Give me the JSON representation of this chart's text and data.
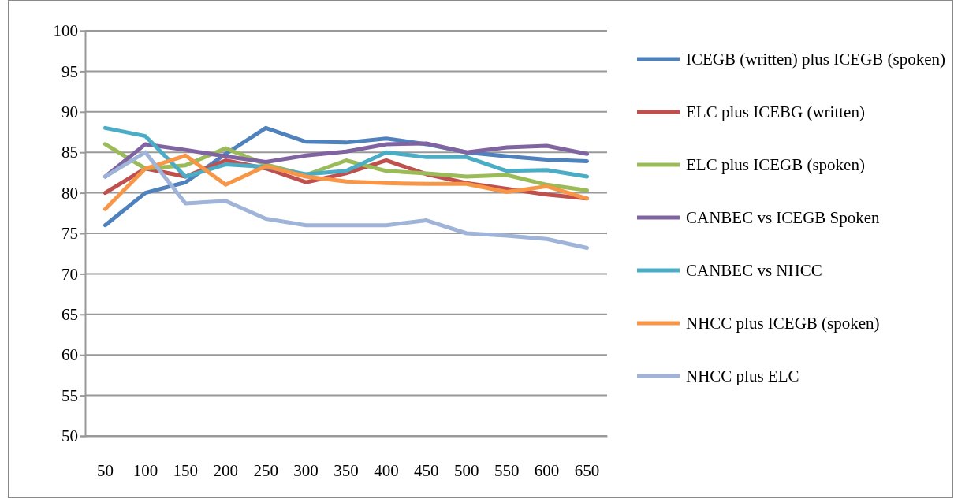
{
  "chart_data": {
    "type": "line",
    "categories": [
      "50",
      "100",
      "150",
      "200",
      "250",
      "300",
      "350",
      "400",
      "450",
      "500",
      "550",
      "600",
      "650"
    ],
    "ylim": [
      50,
      100
    ],
    "yticks": [
      50,
      55,
      60,
      65,
      70,
      75,
      80,
      85,
      90,
      95,
      100
    ],
    "grid": "y",
    "legend": "right",
    "marker": "none",
    "line_style": "solid",
    "series": [
      {
        "name": "ICEGB (written) plus ICEGB (spoken)",
        "color": "#4f81bd",
        "values": [
          76,
          80,
          81.3,
          84.8,
          88,
          86.3,
          86.2,
          86.7,
          86,
          85,
          84.5,
          84.1,
          83.9
        ]
      },
      {
        "name": "ELC plus ICEBG (written)",
        "color": "#c0504d",
        "values": [
          80,
          83,
          82,
          84,
          83,
          81.3,
          82.4,
          84,
          82.3,
          81.2,
          80.5,
          79.8,
          79.3
        ]
      },
      {
        "name": "ELC plus ICEGB (spoken)",
        "color": "#9bbb59",
        "values": [
          86,
          83,
          83.4,
          85.5,
          83.5,
          82.2,
          84,
          82.7,
          82.4,
          82,
          82.2,
          81,
          80.3
        ]
      },
      {
        "name": "CANBEC vs ICEGB Spoken",
        "color": "#8064a2",
        "values": [
          82,
          86,
          85.3,
          84.5,
          83.8,
          84.6,
          85.1,
          86,
          86.1,
          85,
          85.6,
          85.8,
          84.8
        ]
      },
      {
        "name": "CANBEC vs NHCC",
        "color": "#4bacc6",
        "values": [
          88,
          87,
          82,
          83.5,
          83.2,
          82.3,
          82.7,
          85,
          84.4,
          84.4,
          82.7,
          82.8,
          82
        ]
      },
      {
        "name": "NHCC plus ICEGB (spoken)",
        "color": "#f79646",
        "values": [
          78,
          83,
          84.6,
          81,
          83.3,
          82,
          81.4,
          81.2,
          81.1,
          81.1,
          80.1,
          80.8,
          79.3
        ]
      },
      {
        "name": "NHCC plus ELC",
        "color": "#9fb4d8",
        "values": [
          82,
          85,
          78.7,
          79,
          76.8,
          76,
          76,
          76,
          76.6,
          75,
          74.7,
          74.3,
          73.2
        ]
      }
    ]
  }
}
